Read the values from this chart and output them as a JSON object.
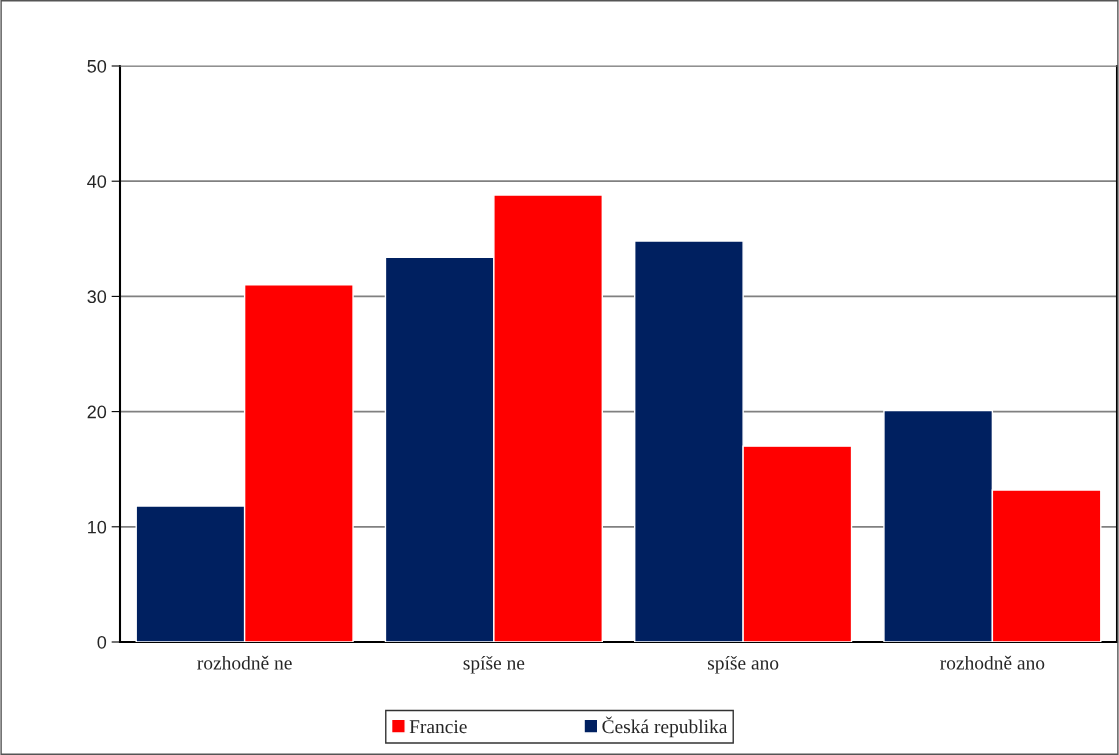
{
  "chart_data": {
    "type": "bar",
    "categories": [
      "rozhodně ne",
      "spíše ne",
      "spíše ano",
      "rozhodně ano"
    ],
    "series": [
      {
        "name": "Česká republika",
        "color": "#002060",
        "values": [
          11.8,
          33.4,
          34.8,
          20.1
        ]
      },
      {
        "name": "Francie",
        "color": "#ff0000",
        "values": [
          31.0,
          38.8,
          17.0,
          13.2
        ]
      }
    ],
    "ylim": [
      0,
      50
    ],
    "yticks": [
      0,
      10,
      20,
      30,
      40,
      50
    ],
    "grid": "y",
    "legend": "bottom"
  }
}
